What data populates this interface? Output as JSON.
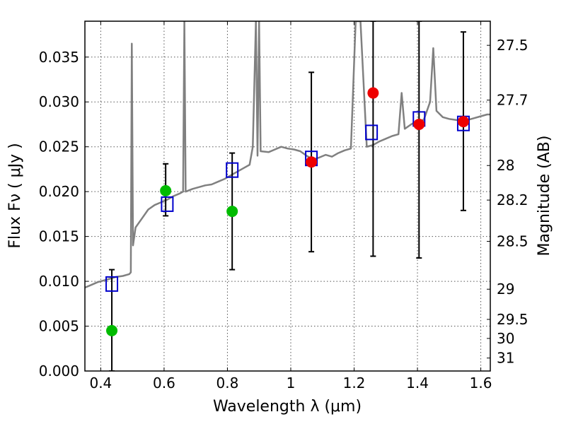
{
  "chart_data": {
    "type": "scatter",
    "xlabel": "Wavelength  λ (μm)",
    "ylabel": "Flux  Fν  ( μJy )",
    "y2label": "Magnitude (AB)",
    "xlim": [
      0.35,
      1.63
    ],
    "ylim": [
      0.0,
      0.039
    ],
    "grid": true,
    "x_ticks": [
      {
        "v": 0.4,
        "label": "0.4"
      },
      {
        "v": 0.6,
        "label": "0.6"
      },
      {
        "v": 0.8,
        "label": "0.8"
      },
      {
        "v": 1.0,
        "label": "1"
      },
      {
        "v": 1.2,
        "label": "1.2"
      },
      {
        "v": 1.4,
        "label": "1.4"
      },
      {
        "v": 1.6,
        "label": "1.6"
      }
    ],
    "y_ticks": [
      {
        "v": 0.0,
        "label": "0.000"
      },
      {
        "v": 0.005,
        "label": "0.005"
      },
      {
        "v": 0.01,
        "label": "0.010"
      },
      {
        "v": 0.015,
        "label": "0.015"
      },
      {
        "v": 0.02,
        "label": "0.020"
      },
      {
        "v": 0.025,
        "label": "0.025"
      },
      {
        "v": 0.03,
        "label": "0.030"
      },
      {
        "v": 0.035,
        "label": "0.035"
      }
    ],
    "mag_ticks": [
      {
        "mag": 27.5,
        "label": "27.5"
      },
      {
        "mag": 27.7,
        "label": "27.7"
      },
      {
        "mag": 28.0,
        "label": "28"
      },
      {
        "mag": 28.2,
        "label": "28.2"
      },
      {
        "mag": 28.5,
        "label": "28.5"
      },
      {
        "mag": 29.0,
        "label": "29"
      },
      {
        "mag": 29.5,
        "label": "29.5"
      },
      {
        "mag": 30.0,
        "label": "30"
      },
      {
        "mag": 31.0,
        "label": "31"
      }
    ],
    "series": [
      {
        "kind": "sed_model",
        "color": "#808080",
        "points": [
          [
            0.35,
            0.0093
          ],
          [
            0.37,
            0.0096
          ],
          [
            0.39,
            0.0099
          ],
          [
            0.41,
            0.0101
          ],
          [
            0.43,
            0.0103
          ],
          [
            0.45,
            0.0105
          ],
          [
            0.47,
            0.0106
          ],
          [
            0.49,
            0.0108
          ],
          [
            0.495,
            0.011
          ],
          [
            0.498,
            0.0365
          ],
          [
            0.502,
            0.014
          ],
          [
            0.51,
            0.016
          ],
          [
            0.53,
            0.017
          ],
          [
            0.55,
            0.018
          ],
          [
            0.57,
            0.0185
          ],
          [
            0.59,
            0.0188
          ],
          [
            0.61,
            0.0191
          ],
          [
            0.63,
            0.0195
          ],
          [
            0.65,
            0.0198
          ],
          [
            0.66,
            0.02
          ],
          [
            0.664,
            0.039
          ],
          [
            0.668,
            0.02
          ],
          [
            0.69,
            0.0203
          ],
          [
            0.71,
            0.0205
          ],
          [
            0.73,
            0.0207
          ],
          [
            0.75,
            0.0208
          ],
          [
            0.77,
            0.0211
          ],
          [
            0.79,
            0.0214
          ],
          [
            0.81,
            0.0218
          ],
          [
            0.83,
            0.0222
          ],
          [
            0.85,
            0.0226
          ],
          [
            0.87,
            0.023
          ],
          [
            0.88,
            0.025
          ],
          [
            0.89,
            0.039
          ],
          [
            0.895,
            0.024
          ],
          [
            0.9,
            0.039
          ],
          [
            0.905,
            0.0245
          ],
          [
            0.93,
            0.0244
          ],
          [
            0.95,
            0.0247
          ],
          [
            0.97,
            0.025
          ],
          [
            0.99,
            0.0248
          ],
          [
            1.01,
            0.0247
          ],
          [
            1.03,
            0.0245
          ],
          [
            1.05,
            0.024
          ],
          [
            1.07,
            0.0236
          ],
          [
            1.09,
            0.0238
          ],
          [
            1.11,
            0.0241
          ],
          [
            1.13,
            0.0239
          ],
          [
            1.15,
            0.0243
          ],
          [
            1.17,
            0.0246
          ],
          [
            1.19,
            0.0248
          ],
          [
            1.205,
            0.039
          ],
          [
            1.22,
            0.039
          ],
          [
            1.24,
            0.025
          ],
          [
            1.26,
            0.0252
          ],
          [
            1.28,
            0.0256
          ],
          [
            1.3,
            0.0259
          ],
          [
            1.32,
            0.0262
          ],
          [
            1.34,
            0.0264
          ],
          [
            1.35,
            0.031
          ],
          [
            1.36,
            0.027
          ],
          [
            1.38,
            0.0275
          ],
          [
            1.4,
            0.0279
          ],
          [
            1.42,
            0.028
          ],
          [
            1.44,
            0.03
          ],
          [
            1.45,
            0.036
          ],
          [
            1.46,
            0.029
          ],
          [
            1.48,
            0.0283
          ],
          [
            1.5,
            0.0281
          ],
          [
            1.52,
            0.028
          ],
          [
            1.54,
            0.0279
          ],
          [
            1.56,
            0.028
          ],
          [
            1.58,
            0.0282
          ],
          [
            1.6,
            0.0284
          ],
          [
            1.62,
            0.0286
          ],
          [
            1.63,
            0.0286
          ]
        ]
      },
      {
        "kind": "model_photometry",
        "marker": "open-square",
        "color": "#0000cc",
        "points": [
          {
            "x": 0.435,
            "y": 0.0097
          },
          {
            "x": 0.61,
            "y": 0.0186
          },
          {
            "x": 0.815,
            "y": 0.0224
          },
          {
            "x": 1.065,
            "y": 0.0237
          },
          {
            "x": 1.255,
            "y": 0.0266
          },
          {
            "x": 1.405,
            "y": 0.0281
          },
          {
            "x": 1.545,
            "y": 0.0276
          }
        ]
      },
      {
        "kind": "observed_optical",
        "marker": "filled-circle",
        "color": "#00bb00",
        "points": [
          {
            "x": 0.435,
            "y": 0.0045,
            "lo": 0.0,
            "hi": 0.0113
          },
          {
            "x": 0.605,
            "y": 0.0201,
            "lo": 0.0173,
            "hi": 0.0231
          },
          {
            "x": 0.815,
            "y": 0.0178,
            "lo": 0.0113,
            "hi": 0.0243
          }
        ]
      },
      {
        "kind": "observed_infrared",
        "marker": "filled-circle",
        "color": "#ee0000",
        "points": [
          {
            "x": 1.065,
            "y": 0.0233,
            "lo": 0.0133,
            "hi": 0.0333
          },
          {
            "x": 1.26,
            "y": 0.031,
            "lo": 0.0128,
            "hi": 0.039
          },
          {
            "x": 1.405,
            "y": 0.0275,
            "lo": 0.0126,
            "hi": 0.039
          },
          {
            "x": 1.545,
            "y": 0.0278,
            "lo": 0.0179,
            "hi": 0.0378
          }
        ]
      }
    ]
  }
}
